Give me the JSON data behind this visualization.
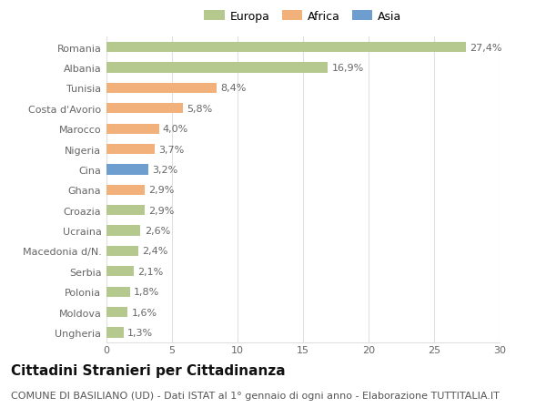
{
  "categories": [
    "Romania",
    "Albania",
    "Tunisia",
    "Costa d'Avorio",
    "Marocco",
    "Nigeria",
    "Cina",
    "Ghana",
    "Croazia",
    "Ucraina",
    "Macedonia d/N.",
    "Serbia",
    "Polonia",
    "Moldova",
    "Ungheria"
  ],
  "values": [
    27.4,
    16.9,
    8.4,
    5.8,
    4.0,
    3.7,
    3.2,
    2.9,
    2.9,
    2.6,
    2.4,
    2.1,
    1.8,
    1.6,
    1.3
  ],
  "labels": [
    "27,4%",
    "16,9%",
    "8,4%",
    "5,8%",
    "4,0%",
    "3,7%",
    "3,2%",
    "2,9%",
    "2,9%",
    "2,6%",
    "2,4%",
    "2,1%",
    "1,8%",
    "1,6%",
    "1,3%"
  ],
  "bar_colors": [
    "#b5c98e",
    "#b5c98e",
    "#f2b07b",
    "#f2b07b",
    "#f2b07b",
    "#f2b07b",
    "#6e9ecf",
    "#f2b07b",
    "#b5c98e",
    "#b5c98e",
    "#b5c98e",
    "#b5c98e",
    "#b5c98e",
    "#b5c98e",
    "#b5c98e"
  ],
  "legend_labels": [
    "Europa",
    "Africa",
    "Asia"
  ],
  "legend_colors": [
    "#b5c98e",
    "#f2b07b",
    "#6e9ecf"
  ],
  "title": "Cittadini Stranieri per Cittadinanza",
  "subtitle": "COMUNE DI BASILIANO (UD) - Dati ISTAT al 1° gennaio di ogni anno - Elaborazione TUTTITALIA.IT",
  "xlim": [
    0,
    30
  ],
  "xticks": [
    0,
    5,
    10,
    15,
    20,
    25,
    30
  ],
  "background_color": "#ffffff",
  "grid_color": "#e0e0e0",
  "bar_height": 0.5,
  "title_fontsize": 11,
  "subtitle_fontsize": 8,
  "label_fontsize": 8,
  "tick_fontsize": 8,
  "legend_fontsize": 9
}
